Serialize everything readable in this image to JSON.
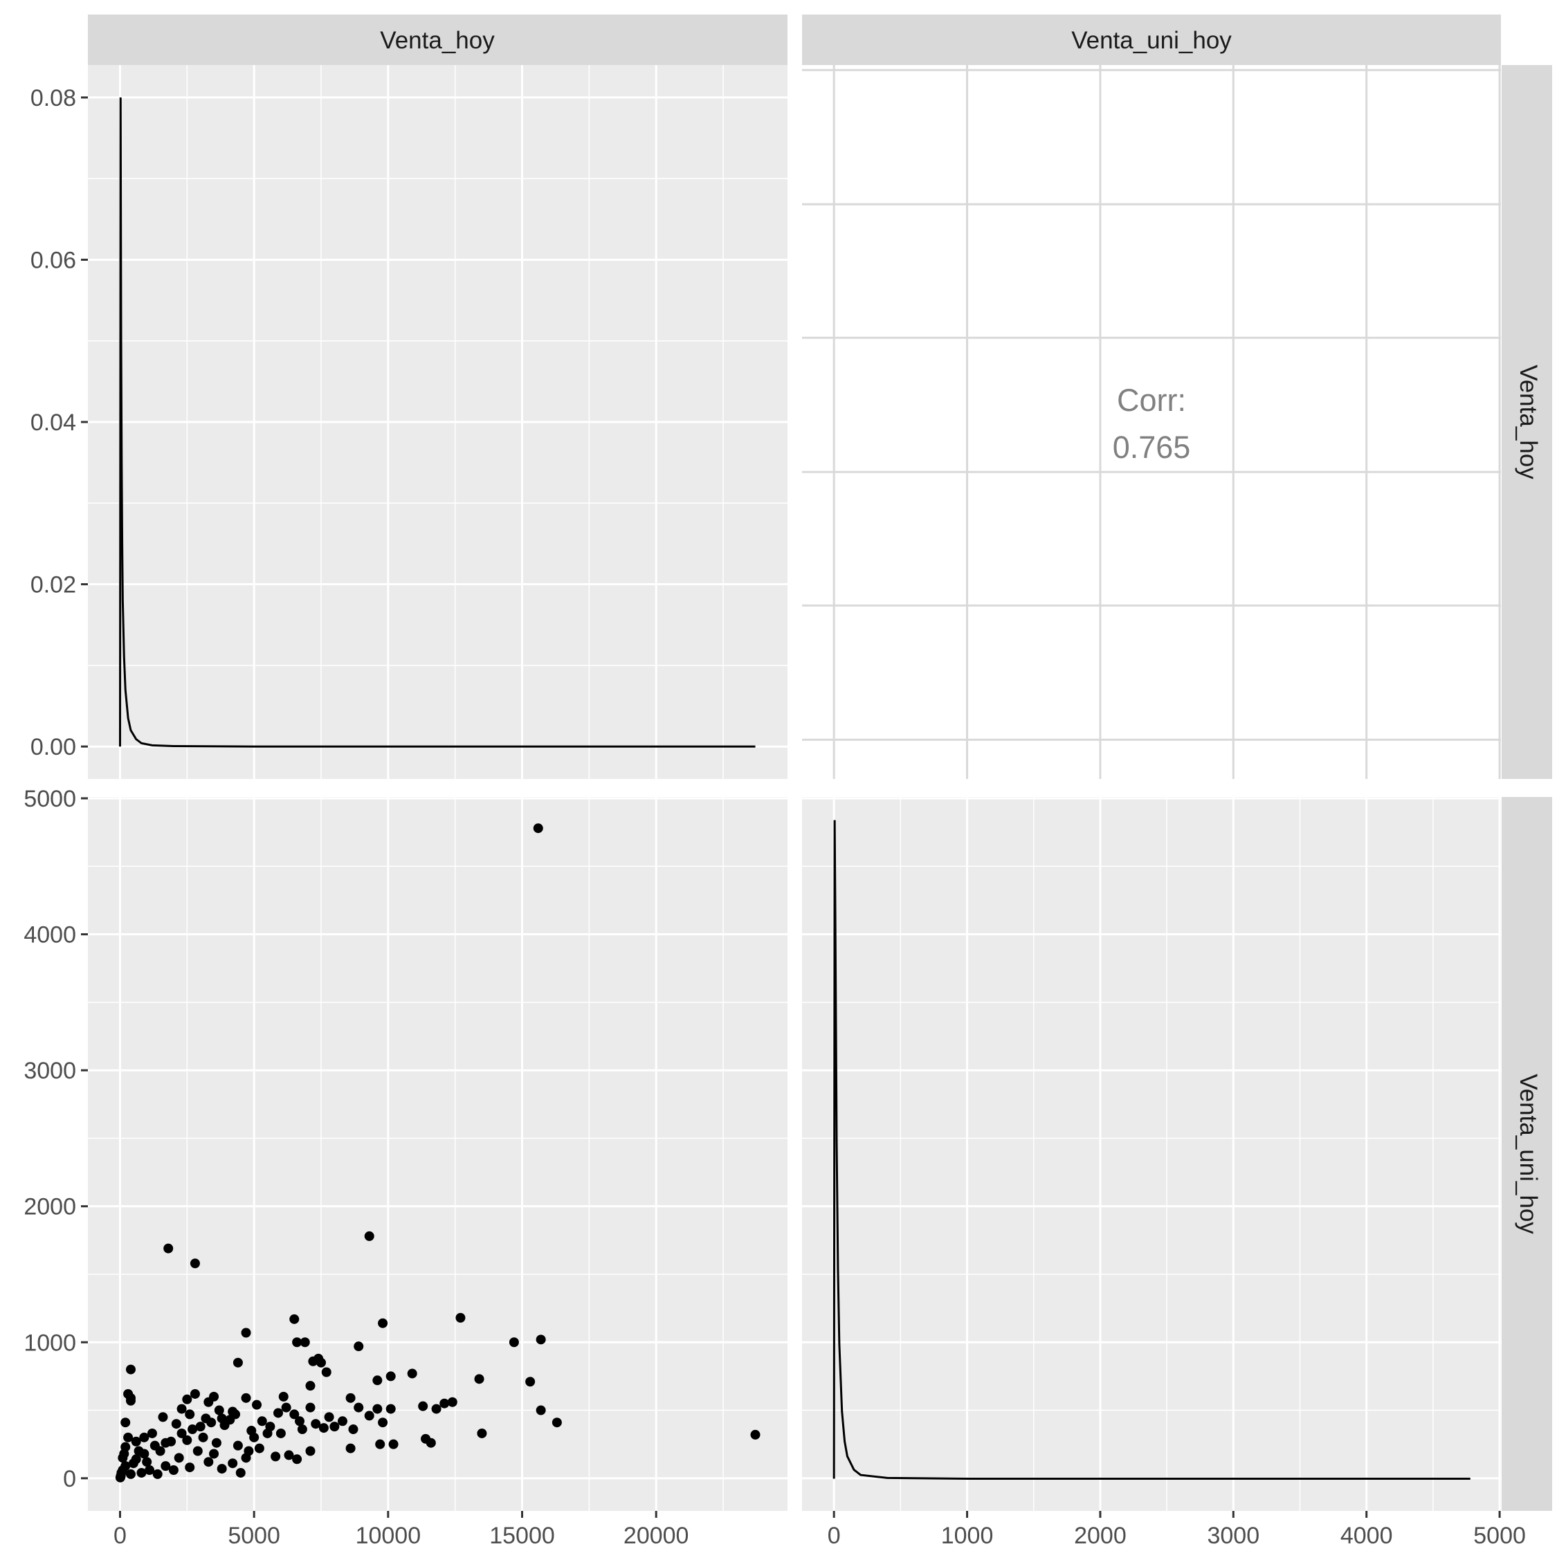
{
  "colors": {
    "panel_bg": "#ebebeb",
    "strip_bg": "#d9d9d9",
    "grid": "#ffffff",
    "upper_grid": "#d9d9d9",
    "ink": "#000000",
    "axis_text": "#4d4d4d",
    "strip_text": "#1a1a1a",
    "corr_text": "#808080"
  },
  "strips": {
    "top": [
      "Venta_hoy",
      "Venta_uni_hoy"
    ],
    "right": [
      "Venta_hoy",
      "Venta_uni_hoy"
    ]
  },
  "x_axes": {
    "col1_ticks": [
      "0",
      "5000",
      "10000",
      "15000",
      "20000"
    ],
    "col2_ticks": [
      "0",
      "1000",
      "2000",
      "3000",
      "4000",
      "5000"
    ]
  },
  "y_axes": {
    "row1_ticks": [
      "0.00",
      "0.02",
      "0.04",
      "0.06",
      "0.08"
    ],
    "row2_ticks": [
      "0",
      "1000",
      "2000",
      "3000",
      "4000",
      "5000"
    ]
  },
  "correlation": {
    "label": "Corr:",
    "value": "0.765"
  },
  "chart_data": [
    {
      "type": "line",
      "panel": "row1-col1",
      "description_series": "density of Venta_hoy",
      "xlim": [
        -1200,
        24900
      ],
      "ylim": [
        -0.004,
        0.084
      ],
      "x": [
        0,
        20,
        40,
        60,
        80,
        100,
        150,
        200,
        300,
        400,
        600,
        800,
        1200,
        2000,
        5000,
        10000,
        15000,
        20000,
        23700
      ],
      "y": [
        0.0,
        0.08,
        0.05,
        0.035,
        0.025,
        0.018,
        0.011,
        0.007,
        0.0035,
        0.002,
        0.0009,
        0.0004,
        0.00015,
        5e-05,
        0.0,
        0.0,
        0.0,
        0.0,
        0.0
      ]
    },
    {
      "type": "text",
      "panel": "row1-col2",
      "label": "Corr:",
      "value": 0.765
    },
    {
      "type": "scatter",
      "panel": "row2-col1",
      "xlabel": "Venta_hoy",
      "ylabel": "Venta_uni_hoy",
      "xlim": [
        -1200,
        24900
      ],
      "ylim": [
        -240,
        5010
      ],
      "points": [
        [
          15600,
          4780
        ],
        [
          9300,
          1780
        ],
        [
          1800,
          1690
        ],
        [
          2800,
          1580
        ],
        [
          12700,
          1180
        ],
        [
          6500,
          1170
        ],
        [
          9800,
          1140
        ],
        [
          4700,
          1070
        ],
        [
          15700,
          1020
        ],
        [
          6600,
          1000
        ],
        [
          6900,
          1000
        ],
        [
          14700,
          1000
        ],
        [
          8900,
          970
        ],
        [
          7400,
          880
        ],
        [
          7200,
          860
        ],
        [
          4400,
          850
        ],
        [
          7500,
          850
        ],
        [
          400,
          800
        ],
        [
          7700,
          780
        ],
        [
          10900,
          770
        ],
        [
          10100,
          750
        ],
        [
          13400,
          730
        ],
        [
          9600,
          720
        ],
        [
          15300,
          710
        ],
        [
          7100,
          680
        ],
        [
          300,
          620
        ],
        [
          2800,
          620
        ],
        [
          400,
          590
        ],
        [
          3500,
          600
        ],
        [
          4700,
          590
        ],
        [
          6100,
          600
        ],
        [
          8600,
          590
        ],
        [
          400,
          570
        ],
        [
          12400,
          560
        ],
        [
          12100,
          550
        ],
        [
          2500,
          580
        ],
        [
          3300,
          560
        ],
        [
          5100,
          540
        ],
        [
          6200,
          520
        ],
        [
          7100,
          520
        ],
        [
          8900,
          520
        ],
        [
          9600,
          510
        ],
        [
          10100,
          510
        ],
        [
          11800,
          510
        ],
        [
          11300,
          530
        ],
        [
          15700,
          500
        ],
        [
          2300,
          510
        ],
        [
          3700,
          500
        ],
        [
          4200,
          490
        ],
        [
          5900,
          480
        ],
        [
          6500,
          470
        ],
        [
          9300,
          460
        ],
        [
          7800,
          450
        ],
        [
          2600,
          470
        ],
        [
          1600,
          450
        ],
        [
          3200,
          440
        ],
        [
          4100,
          430
        ],
        [
          5300,
          420
        ],
        [
          6700,
          420
        ],
        [
          8300,
          420
        ],
        [
          9800,
          410
        ],
        [
          16300,
          410
        ],
        [
          200,
          410
        ],
        [
          2100,
          400
        ],
        [
          3900,
          390
        ],
        [
          5600,
          380
        ],
        [
          7600,
          370
        ],
        [
          8700,
          360
        ],
        [
          23700,
          320
        ],
        [
          13500,
          330
        ],
        [
          11400,
          290
        ],
        [
          11600,
          260
        ],
        [
          9700,
          250
        ],
        [
          10200,
          250
        ],
        [
          8600,
          220
        ],
        [
          7100,
          200
        ],
        [
          6300,
          170
        ],
        [
          6600,
          140
        ],
        [
          5800,
          160
        ],
        [
          4700,
          150
        ],
        [
          3100,
          300
        ],
        [
          2500,
          280
        ],
        [
          1900,
          270
        ],
        [
          1200,
          330
        ],
        [
          900,
          300
        ],
        [
          600,
          270
        ],
        [
          300,
          300
        ],
        [
          200,
          230
        ],
        [
          150,
          180
        ],
        [
          100,
          150
        ],
        [
          3600,
          260
        ],
        [
          4400,
          240
        ],
        [
          5000,
          300
        ],
        [
          6000,
          330
        ],
        [
          2900,
          200
        ],
        [
          1500,
          200
        ],
        [
          700,
          200
        ],
        [
          2200,
          150
        ],
        [
          3300,
          120
        ],
        [
          4200,
          110
        ],
        [
          1000,
          120
        ],
        [
          500,
          110
        ],
        [
          200,
          90
        ],
        [
          100,
          60
        ],
        [
          50,
          40
        ],
        [
          30,
          20
        ],
        [
          20,
          10
        ],
        [
          10,
          5
        ],
        [
          1700,
          90
        ],
        [
          2600,
          80
        ],
        [
          3800,
          70
        ],
        [
          4500,
          40
        ],
        [
          1100,
          60
        ],
        [
          800,
          40
        ],
        [
          400,
          30
        ],
        [
          5200,
          220
        ],
        [
          4800,
          200
        ],
        [
          3500,
          180
        ],
        [
          2000,
          60
        ],
        [
          1400,
          30
        ],
        [
          600,
          140
        ],
        [
          900,
          180
        ],
        [
          1300,
          240
        ],
        [
          1700,
          260
        ],
        [
          2300,
          330
        ],
        [
          2700,
          360
        ],
        [
          3000,
          380
        ],
        [
          3400,
          410
        ],
        [
          3800,
          440
        ],
        [
          4300,
          470
        ],
        [
          4900,
          350
        ],
        [
          5500,
          330
        ],
        [
          6800,
          360
        ],
        [
          7300,
          400
        ],
        [
          8000,
          380
        ]
      ]
    },
    {
      "type": "line",
      "panel": "row2-col2",
      "description_series": "density of Venta_uni_hoy",
      "xlim": [
        -240,
        5010
      ],
      "ylim": [
        -0.0043,
        0.0911
      ],
      "x": [
        0,
        5,
        10,
        15,
        20,
        30,
        40,
        60,
        80,
        100,
        150,
        200,
        400,
        1000,
        2000,
        3000,
        4000,
        4780
      ],
      "y": [
        0.0,
        0.088,
        0.075,
        0.06,
        0.045,
        0.028,
        0.018,
        0.009,
        0.005,
        0.003,
        0.0012,
        0.0005,
        0.0001,
        0.0,
        0.0,
        0.0,
        0.0,
        0.0
      ]
    }
  ]
}
